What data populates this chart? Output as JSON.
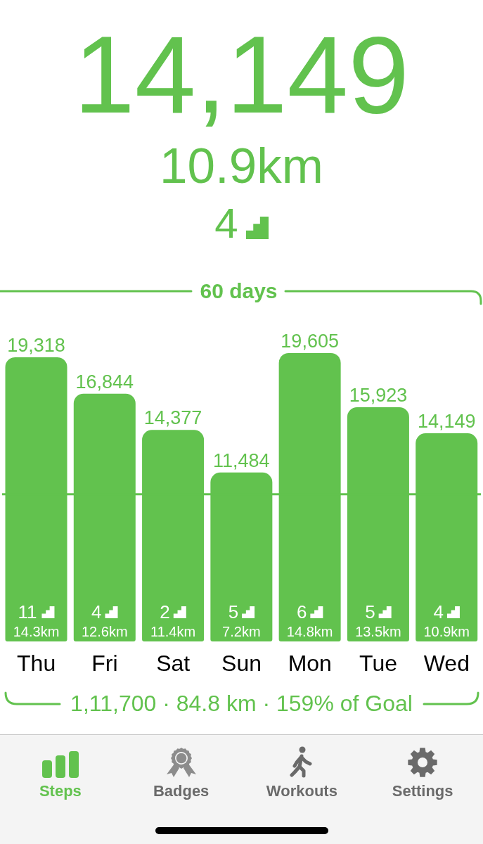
{
  "chart_data": {
    "type": "bar",
    "title": "14,149",
    "subtitle": "10.9km",
    "categories": [
      "Thu",
      "Fri",
      "Sat",
      "Sun",
      "Mon",
      "Tue",
      "Wed"
    ],
    "values": [
      19318,
      16844,
      14377,
      11484,
      19605,
      15923,
      14149
    ],
    "value_labels": [
      "19,318",
      "16,844",
      "14,377",
      "11,484",
      "19,605",
      "15,923",
      "14,149"
    ],
    "color": "#62c24e",
    "ref_lines": [
      {
        "axis": "y",
        "value": 10000,
        "color": "#62c24e"
      }
    ],
    "annotations": [
      "4",
      "60 days",
      "11",
      "14.3km",
      "4",
      "12.6km",
      "2",
      "11.4km",
      "5",
      "7.2km",
      "6",
      "14.8km",
      "5",
      "13.5km",
      "4",
      "10.9km",
      "1,11,700 · 84.8 km · 159% of Goal",
      "Steps",
      "Badges",
      "Workouts",
      "Settings"
    ]
  }
}
